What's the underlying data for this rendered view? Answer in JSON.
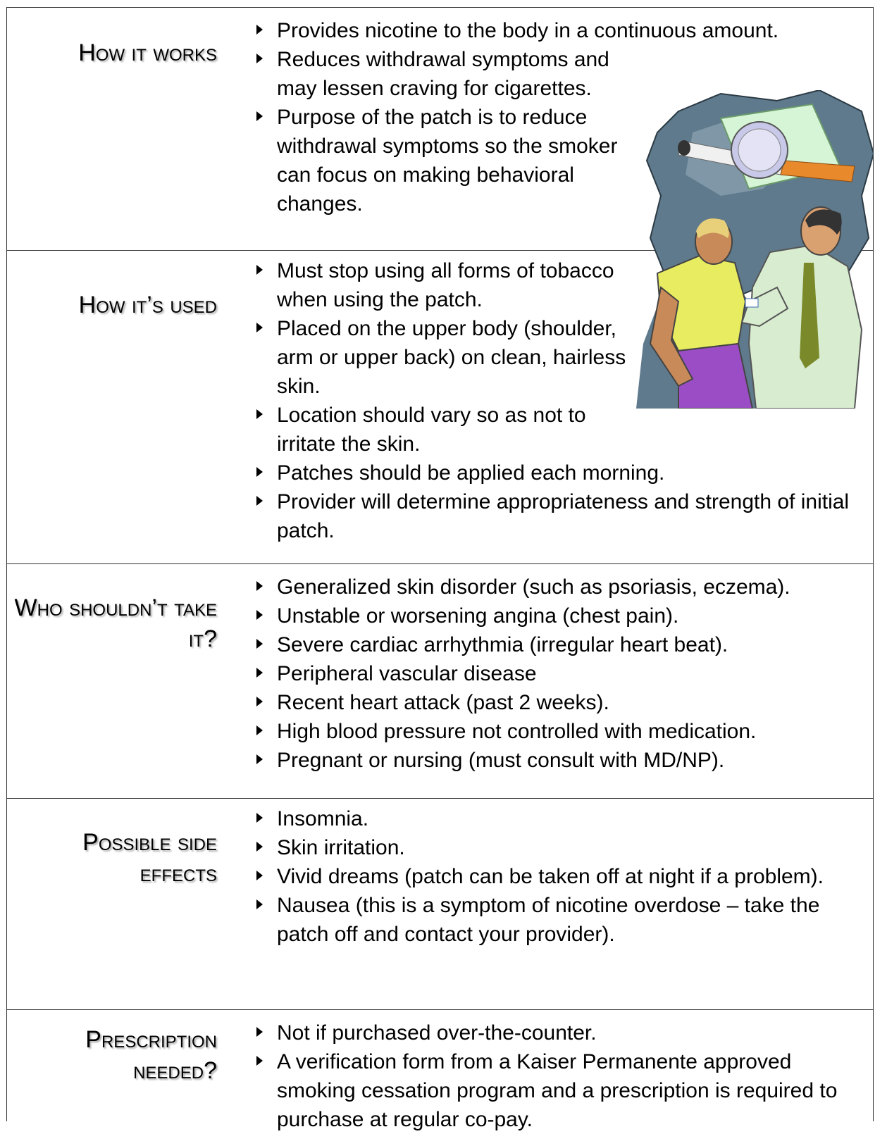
{
  "rows": [
    {
      "heading": "How it works",
      "items": [
        "Provides nicotine to the body in a continuous amount.",
        "Reduces withdrawal symptoms and may lessen craving for cigarettes.",
        "Purpose of the patch is to reduce withdrawal symptoms so the smoker can focus on making behavioral changes."
      ]
    },
    {
      "heading": "How it’s used",
      "items": [
        "Must stop using all forms of tobacco when using the patch.",
        "Placed on the upper body (shoulder, arm or upper back) on clean, hairless skin.",
        "Location should vary so as not to irritate the skin.",
        "Patches should be applied each morning.",
        "Provider will determine appropriateness and strength of initial patch."
      ]
    },
    {
      "heading": "Who shouldn’t take it?",
      "items": [
        "Generalized skin disorder (such as psoriasis, eczema).",
        "Unstable or worsening angina (chest pain).",
        "Severe cardiac arrhythmia (irregular heart beat).",
        "Peripheral vascular disease",
        "Recent heart attack (past 2 weeks).",
        "High blood pressure not controlled with medication.",
        "Pregnant or nursing (must consult with MD/NP)."
      ]
    },
    {
      "heading": "Possible side effects",
      "items": [
        "Insomnia.",
        "Skin irritation.",
        "Vivid dreams (patch can be taken off at night if a problem).",
        "Nausea (this is a symptom of nicotine overdose – take the patch off and contact your provider)."
      ]
    },
    {
      "heading": "Prescription needed?",
      "items": [
        "Not if purchased over-the-counter.",
        "A verification form from a Kaiser Permanente approved smoking cessation program and a prescription is required to purchase at regular co-pay."
      ]
    }
  ]
}
